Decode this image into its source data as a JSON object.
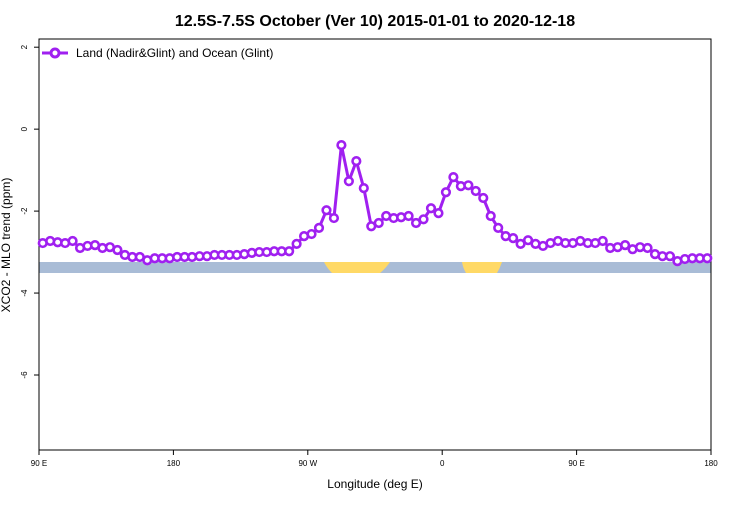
{
  "chart_data": {
    "type": "line",
    "title": "12.5S-7.5S October (Ver 10)   2015-01-01 to 2020-12-18",
    "x_label": "Longitude (deg E)",
    "y_label": "XCO2 - MLO trend (ppm)",
    "xlim": [
      90,
      540
    ],
    "xticks": [
      {
        "value": 90,
        "label": "90 E"
      },
      180,
      {
        "value": 270,
        "label": "90 W"
      },
      {
        "value": 360,
        "label": "0"
      },
      {
        "value": 450,
        "label": "90 E"
      },
      {
        "value": 540,
        "label": "180"
      }
    ],
    "ylim": [
      -7.83,
      2.2
    ],
    "yticks": [
      2,
      0,
      -2,
      -4,
      -6
    ],
    "legend": "top-left",
    "x": [
      92.5,
      97.5,
      102.5,
      107.5,
      112.5,
      117.5,
      122.5,
      127.5,
      132.5,
      137.5,
      142.5,
      147.5,
      152.5,
      157.5,
      162.5,
      167.5,
      172.5,
      177.5,
      182.5,
      187.5,
      192.5,
      197.5,
      202.5,
      207.5,
      212.5,
      217.5,
      222.5,
      227.5,
      232.5,
      237.5,
      242.5,
      247.5,
      252.5,
      257.5,
      262.5,
      267.5,
      272.5,
      277.5,
      282.5,
      287.5,
      292.5,
      297.5,
      302.5,
      307.5,
      312.5,
      317.5,
      322.5,
      327.5,
      332.5,
      337.5,
      342.5,
      347.5,
      352.5,
      357.5,
      362.5,
      367.5,
      372.5,
      377.5,
      382.5,
      387.5,
      392.5,
      397.5,
      402.5,
      407.5,
      412.5,
      417.5,
      422.5,
      427.5,
      432.5,
      437.5,
      442.5,
      447.5,
      452.5,
      457.5,
      462.5,
      467.5,
      472.5,
      477.5,
      482.5,
      487.5,
      492.5,
      497.5,
      502.5,
      507.5,
      512.5,
      517.5,
      522.5,
      527.5,
      532.5,
      537.5
    ],
    "series": [
      {
        "name": "Land (Nadir&Glint) and Ocean (Glint)",
        "color": "#a020f0",
        "values": [
          -2.78,
          -2.73,
          -2.76,
          -2.78,
          -2.73,
          -2.9,
          -2.85,
          -2.83,
          -2.9,
          -2.88,
          -2.95,
          -3.07,
          -3.12,
          -3.12,
          -3.2,
          -3.15,
          -3.15,
          -3.15,
          -3.12,
          -3.12,
          -3.12,
          -3.1,
          -3.1,
          -3.07,
          -3.07,
          -3.07,
          -3.07,
          -3.05,
          -3.02,
          -3.0,
          -3.0,
          -2.98,
          -2.98,
          -2.98,
          -2.8,
          -2.61,
          -2.56,
          -2.41,
          -1.98,
          -2.17,
          -0.39,
          -1.27,
          -0.78,
          -1.44,
          -2.37,
          -2.29,
          -2.12,
          -2.17,
          -2.15,
          -2.12,
          -2.29,
          -2.2,
          -1.93,
          -2.05,
          -1.54,
          -1.17,
          -1.39,
          -1.37,
          -1.51,
          -1.68,
          -2.12,
          -2.41,
          -2.61,
          -2.66,
          -2.8,
          -2.71,
          -2.8,
          -2.85,
          -2.78,
          -2.73,
          -2.78,
          -2.78,
          -2.73,
          -2.78,
          -2.78,
          -2.73,
          -2.9,
          -2.88,
          -2.83,
          -2.93,
          -2.88,
          -2.9,
          -3.05,
          -3.1,
          -3.1,
          -3.22,
          -3.17,
          -3.15,
          -3.15,
          -3.15
        ]
      }
    ]
  }
}
